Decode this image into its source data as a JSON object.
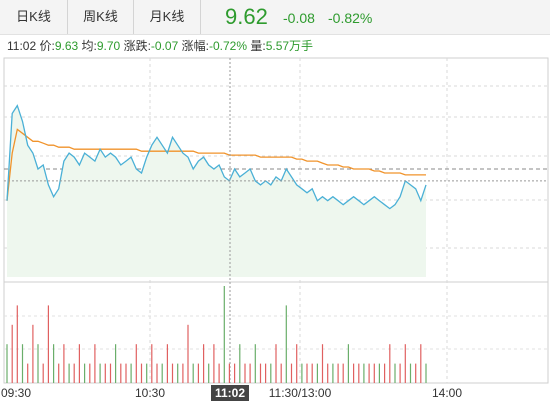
{
  "tabs": [
    {
      "label": "日K线"
    },
    {
      "label": "周K线"
    },
    {
      "label": "月K线"
    }
  ],
  "quote": {
    "price": "9.62",
    "change": "-0.08",
    "change_pct": "-0.82%"
  },
  "info_bar": {
    "time": "11:02",
    "price_label": "价:",
    "price_value": "9.63",
    "avg_label": "均:",
    "avg_value": "9.70",
    "change_label": "涨跌:",
    "change_value": "-0.07",
    "pct_label": "涨幅:",
    "pct_value": "-0.72%",
    "volume_label": "量:",
    "volume_value": "5.57万手"
  },
  "colors": {
    "price_line": "#4ab0d6",
    "avg_line": "#f0932b",
    "area_fill": "#eef7ee",
    "volume_bar": "#e06060",
    "volume_bar_alt": "#6aae6a",
    "down": "#2e9b2e"
  },
  "chart_data": {
    "type": "line",
    "x_ticks": [
      "09:30",
      "10:30",
      "11:02",
      "11:30/13:00",
      "14:00"
    ],
    "cursor_time": "11:02",
    "series": [
      {
        "values": [
          9.62,
          9.84,
          9.86,
          9.82,
          9.76,
          9.74,
          9.7,
          9.71,
          9.66,
          9.63,
          9.65,
          9.72,
          9.74,
          9.73,
          9.71,
          9.74,
          9.73,
          9.72,
          9.75,
          9.73,
          9.74,
          9.73,
          9.71,
          9.72,
          9.73,
          9.7,
          9.69,
          9.73,
          9.76,
          9.78,
          9.76,
          9.74,
          9.78,
          9.76,
          9.74,
          9.73,
          9.7,
          9.72,
          9.73,
          9.71,
          9.7,
          9.71,
          9.68,
          9.67,
          9.7,
          9.68,
          9.69,
          9.7,
          9.67,
          9.66,
          9.67,
          9.66,
          9.68,
          9.67,
          9.7,
          9.68,
          9.66,
          9.65,
          9.64,
          9.65,
          9.62,
          9.63,
          9.62,
          9.63,
          9.62,
          9.61,
          9.62,
          9.63,
          9.62,
          9.61,
          9.62,
          9.63,
          9.62,
          9.61,
          9.6,
          9.61,
          9.63,
          9.67,
          9.66,
          9.65,
          9.62,
          9.66
        ]
      },
      {
        "values": [
          9.62,
          9.74,
          9.8,
          9.79,
          9.78,
          9.77,
          9.77,
          9.765,
          9.76,
          9.76,
          9.755,
          9.755,
          9.755,
          9.75,
          9.75,
          9.75,
          9.75,
          9.75,
          9.75,
          9.75,
          9.75,
          9.75,
          9.75,
          9.75,
          9.75,
          9.75,
          9.745,
          9.745,
          9.745,
          9.745,
          9.745,
          9.745,
          9.745,
          9.745,
          9.745,
          9.745,
          9.745,
          9.74,
          9.74,
          9.74,
          9.74,
          9.74,
          9.74,
          9.735,
          9.735,
          9.735,
          9.735,
          9.735,
          9.735,
          9.73,
          9.73,
          9.73,
          9.73,
          9.73,
          9.73,
          9.73,
          9.725,
          9.725,
          9.72,
          9.72,
          9.72,
          9.715,
          9.71,
          9.71,
          9.71,
          9.705,
          9.705,
          9.7,
          9.7,
          9.7,
          9.7,
          9.695,
          9.695,
          9.69,
          9.69,
          9.69,
          9.69,
          9.685,
          9.685,
          9.685,
          9.685,
          9.685
        ]
      }
    ],
    "volume": [
      2,
      3,
      4,
      2,
      1,
      3,
      2,
      1,
      4,
      2,
      1,
      2,
      1,
      1,
      2,
      1,
      1,
      2,
      1,
      1,
      1,
      2,
      1,
      1,
      1,
      2,
      1,
      1,
      2,
      1,
      1,
      2,
      1,
      1,
      1,
      3,
      1,
      1,
      2,
      1,
      2,
      1,
      5,
      1,
      1,
      2,
      1,
      1,
      2,
      1,
      1,
      1,
      2,
      1,
      4,
      1,
      2,
      1,
      1,
      1,
      1,
      2,
      1,
      1,
      1,
      1,
      2,
      1,
      1,
      1,
      1,
      1,
      1,
      1,
      2,
      1,
      1,
      2,
      1,
      1,
      2,
      1
    ],
    "y_range": [
      9.42,
      9.98
    ],
    "prev_close": 9.7
  }
}
